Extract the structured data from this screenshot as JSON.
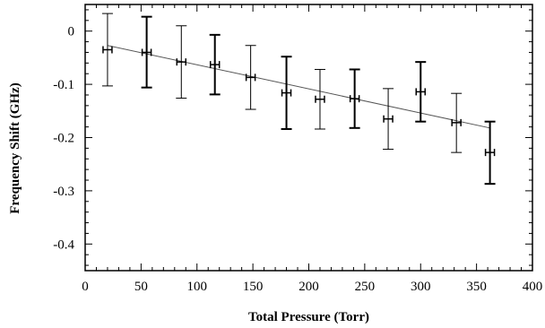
{
  "chart_data": {
    "type": "scatter",
    "xlabel": "Total Pressure (Torr)",
    "ylabel": "Frequency Shift (GHz)",
    "xlim": [
      0,
      400
    ],
    "ylim": [
      -0.45,
      0.05
    ],
    "x_ticks": [
      0,
      50,
      100,
      150,
      200,
      250,
      300,
      350,
      400
    ],
    "y_ticks": [
      0,
      -0.1,
      -0.2,
      -0.3,
      -0.4
    ],
    "x_tick_labels": [
      "0",
      "50",
      "100",
      "150",
      "200",
      "250",
      "300",
      "350",
      "400"
    ],
    "y_tick_labels": [
      "0",
      "-0.1",
      "-0.2",
      "-0.3",
      "-0.4"
    ],
    "grid": false,
    "series": [
      {
        "points": [
          {
            "x": 20,
            "y": -0.035,
            "yerr_low": -0.103,
            "yerr_high": 0.033,
            "xerr": 4
          },
          {
            "x": 55,
            "y": -0.04,
            "yerr_low": -0.106,
            "yerr_high": 0.027,
            "xerr": 4
          },
          {
            "x": 86,
            "y": -0.058,
            "yerr_low": -0.126,
            "yerr_high": 0.01,
            "xerr": 4
          },
          {
            "x": 116,
            "y": -0.063,
            "yerr_low": -0.119,
            "yerr_high": -0.007,
            "xerr": 4
          },
          {
            "x": 148,
            "y": -0.087,
            "yerr_low": -0.147,
            "yerr_high": -0.027,
            "xerr": 4
          },
          {
            "x": 180,
            "y": -0.116,
            "yerr_low": -0.184,
            "yerr_high": -0.048,
            "xerr": 4
          },
          {
            "x": 210,
            "y": -0.128,
            "yerr_low": -0.184,
            "yerr_high": -0.072,
            "xerr": 4
          },
          {
            "x": 241,
            "y": -0.127,
            "yerr_low": -0.182,
            "yerr_high": -0.072,
            "xerr": 4
          },
          {
            "x": 271,
            "y": -0.165,
            "yerr_low": -0.222,
            "yerr_high": -0.108,
            "xerr": 4
          },
          {
            "x": 300,
            "y": -0.114,
            "yerr_low": -0.17,
            "yerr_high": -0.058,
            "xerr": 4
          },
          {
            "x": 332,
            "y": -0.172,
            "yerr_low": -0.228,
            "yerr_high": -0.117,
            "xerr": 4
          },
          {
            "x": 362,
            "y": -0.228,
            "yerr_low": -0.287,
            "yerr_high": -0.17,
            "xerr": 4
          }
        ]
      }
    ],
    "fit_line": {
      "x": [
        20,
        362
      ],
      "y": [
        -0.027,
        -0.182
      ]
    },
    "colors": {
      "marks": "#000000",
      "fit": "#555555",
      "frame": "#000000"
    }
  }
}
